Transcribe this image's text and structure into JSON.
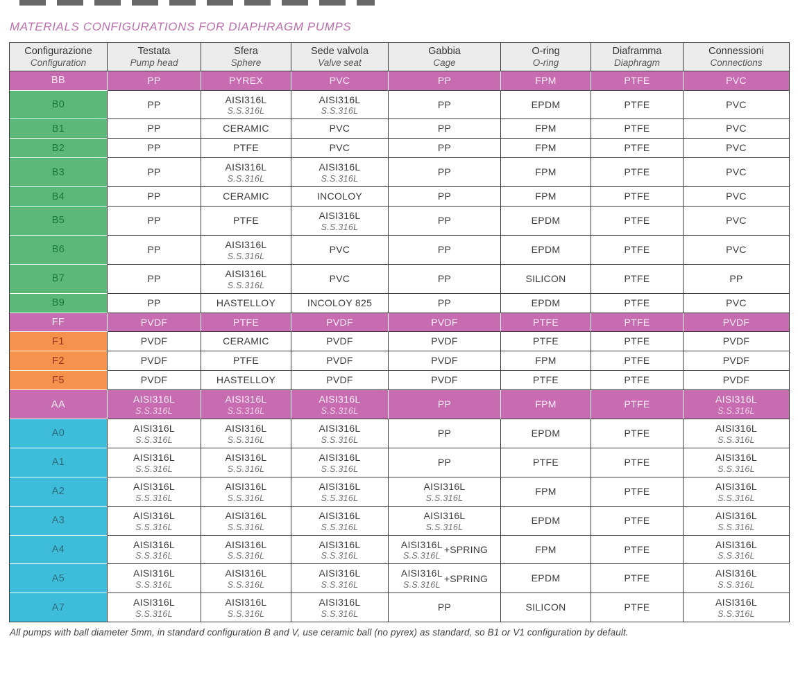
{
  "title": "MATERIALS CONFIGURATIONS FOR DIAPHRAGM PUMPS",
  "footnote": "All pumps with ball diameter 5mm, in standard configuration B and V, use ceramic ball (no pyrex) as standard, so B1 or V1 configuration by default.",
  "colors": {
    "magenta": "#c76cb0",
    "green": "#5cb878",
    "orange": "#f5924d",
    "cyan": "#3dbdd9",
    "title_pink": "#bc6fae"
  },
  "table": {
    "columns": [
      {
        "it": "Configurazione",
        "en": "Configuration"
      },
      {
        "it": "Testata",
        "en": "Pump head"
      },
      {
        "it": "Sfera",
        "en": "Sphere"
      },
      {
        "it": "Sede valvola",
        "en": "Valve seat"
      },
      {
        "it": "Gabbia",
        "en": "Cage"
      },
      {
        "it": "O-ring",
        "en": "O-ring"
      },
      {
        "it": "Diaframma",
        "en": "Diaphragm"
      },
      {
        "it": "Connessioni",
        "en": "Connections"
      }
    ],
    "rows": [
      {
        "code": "BB",
        "group": "magenta",
        "cells": [
          {
            "main": "PP"
          },
          {
            "main": "PYREX"
          },
          {
            "main": "PVC"
          },
          {
            "main": "PP"
          },
          {
            "main": "FPM"
          },
          {
            "main": "PTFE"
          },
          {
            "main": "PVC"
          }
        ]
      },
      {
        "code": "B0",
        "group": "green",
        "cells": [
          {
            "main": "PP"
          },
          {
            "main": "AISI316L",
            "sub": "S.S.316L"
          },
          {
            "main": "AISI316L",
            "sub": "S.S.316L"
          },
          {
            "main": "PP"
          },
          {
            "main": "EPDM"
          },
          {
            "main": "PTFE"
          },
          {
            "main": "PVC"
          }
        ]
      },
      {
        "code": "B1",
        "group": "green",
        "cells": [
          {
            "main": "PP"
          },
          {
            "main": "CERAMIC"
          },
          {
            "main": "PVC"
          },
          {
            "main": "PP"
          },
          {
            "main": "FPM"
          },
          {
            "main": "PTFE"
          },
          {
            "main": "PVC"
          }
        ]
      },
      {
        "code": "B2",
        "group": "green",
        "cells": [
          {
            "main": "PP"
          },
          {
            "main": "PTFE"
          },
          {
            "main": "PVC"
          },
          {
            "main": "PP"
          },
          {
            "main": "FPM"
          },
          {
            "main": "PTFE"
          },
          {
            "main": "PVC"
          }
        ]
      },
      {
        "code": "B3",
        "group": "green",
        "cells": [
          {
            "main": "PP"
          },
          {
            "main": "AISI316L",
            "sub": "S.S.316L"
          },
          {
            "main": "AISI316L",
            "sub": "S.S.316L"
          },
          {
            "main": "PP"
          },
          {
            "main": "FPM"
          },
          {
            "main": "PTFE"
          },
          {
            "main": "PVC"
          }
        ]
      },
      {
        "code": "B4",
        "group": "green",
        "cells": [
          {
            "main": "PP"
          },
          {
            "main": "CERAMIC"
          },
          {
            "main": "INCOLOY"
          },
          {
            "main": "PP"
          },
          {
            "main": "FPM"
          },
          {
            "main": "PTFE"
          },
          {
            "main": "PVC"
          }
        ]
      },
      {
        "code": "B5",
        "group": "green",
        "cells": [
          {
            "main": "PP"
          },
          {
            "main": "PTFE"
          },
          {
            "main": "AISI316L",
            "sub": "S.S.316L"
          },
          {
            "main": "PP"
          },
          {
            "main": "EPDM"
          },
          {
            "main": "PTFE"
          },
          {
            "main": "PVC"
          }
        ]
      },
      {
        "code": "B6",
        "group": "green",
        "cells": [
          {
            "main": "PP"
          },
          {
            "main": "AISI316L",
            "sub": "S.S.316L"
          },
          {
            "main": "PVC"
          },
          {
            "main": "PP"
          },
          {
            "main": "EPDM"
          },
          {
            "main": "PTFE"
          },
          {
            "main": "PVC"
          }
        ]
      },
      {
        "code": "B7",
        "group": "green",
        "cells": [
          {
            "main": "PP"
          },
          {
            "main": "AISI316L",
            "sub": "S.S.316L"
          },
          {
            "main": "PVC"
          },
          {
            "main": "PP"
          },
          {
            "main": "SILICON"
          },
          {
            "main": "PTFE"
          },
          {
            "main": "PP"
          }
        ]
      },
      {
        "code": "B9",
        "group": "green",
        "cells": [
          {
            "main": "PP"
          },
          {
            "main": "HASTELLOY"
          },
          {
            "main": "INCOLOY 825"
          },
          {
            "main": "PP"
          },
          {
            "main": "EPDM"
          },
          {
            "main": "PTFE"
          },
          {
            "main": "PVC"
          }
        ]
      },
      {
        "code": "FF",
        "group": "magenta",
        "cells": [
          {
            "main": "PVDF"
          },
          {
            "main": "PTFE"
          },
          {
            "main": "PVDF"
          },
          {
            "main": "PVDF"
          },
          {
            "main": "PTFE"
          },
          {
            "main": "PTFE"
          },
          {
            "main": "PVDF"
          }
        ]
      },
      {
        "code": "F1",
        "group": "orange",
        "cells": [
          {
            "main": "PVDF"
          },
          {
            "main": "CERAMIC"
          },
          {
            "main": "PVDF"
          },
          {
            "main": "PVDF"
          },
          {
            "main": "PTFE"
          },
          {
            "main": "PTFE"
          },
          {
            "main": "PVDF"
          }
        ]
      },
      {
        "code": "F2",
        "group": "orange",
        "cells": [
          {
            "main": "PVDF"
          },
          {
            "main": "PTFE"
          },
          {
            "main": "PVDF"
          },
          {
            "main": "PVDF"
          },
          {
            "main": "FPM"
          },
          {
            "main": "PTFE"
          },
          {
            "main": "PVDF"
          }
        ]
      },
      {
        "code": "F5",
        "group": "orange",
        "cells": [
          {
            "main": "PVDF"
          },
          {
            "main": "HASTELLOY"
          },
          {
            "main": "PVDF"
          },
          {
            "main": "PVDF"
          },
          {
            "main": "PTFE"
          },
          {
            "main": "PTFE"
          },
          {
            "main": "PVDF"
          }
        ]
      },
      {
        "code": "AA",
        "group": "magenta",
        "cells": [
          {
            "main": "AISI316L",
            "sub": "S.S.316L"
          },
          {
            "main": "AISI316L",
            "sub": "S.S.316L"
          },
          {
            "main": "AISI316L",
            "sub": "S.S.316L"
          },
          {
            "main": "PP"
          },
          {
            "main": "FPM"
          },
          {
            "main": "PTFE"
          },
          {
            "main": "AISI316L",
            "sub": "S.S.316L"
          }
        ]
      },
      {
        "code": "A0",
        "group": "cyan",
        "cells": [
          {
            "main": "AISI316L",
            "sub": "S.S.316L"
          },
          {
            "main": "AISI316L",
            "sub": "S.S.316L"
          },
          {
            "main": "AISI316L",
            "sub": "S.S.316L"
          },
          {
            "main": "PP"
          },
          {
            "main": "EPDM"
          },
          {
            "main": "PTFE"
          },
          {
            "main": "AISI316L",
            "sub": "S.S.316L"
          }
        ]
      },
      {
        "code": "A1",
        "group": "cyan",
        "cells": [
          {
            "main": "AISI316L",
            "sub": "S.S.316L"
          },
          {
            "main": "AISI316L",
            "sub": "S.S.316L"
          },
          {
            "main": "AISI316L",
            "sub": "S.S.316L"
          },
          {
            "main": "PP"
          },
          {
            "main": "PTFE"
          },
          {
            "main": "PTFE"
          },
          {
            "main": "AISI316L",
            "sub": "S.S.316L"
          }
        ]
      },
      {
        "code": "A2",
        "group": "cyan",
        "cells": [
          {
            "main": "AISI316L",
            "sub": "S.S.316L"
          },
          {
            "main": "AISI316L",
            "sub": "S.S.316L"
          },
          {
            "main": "AISI316L",
            "sub": "S.S.316L"
          },
          {
            "main": "AISI316L",
            "sub": "S.S.316L"
          },
          {
            "main": "FPM"
          },
          {
            "main": "PTFE"
          },
          {
            "main": "AISI316L",
            "sub": "S.S.316L"
          }
        ]
      },
      {
        "code": "A3",
        "group": "cyan",
        "cells": [
          {
            "main": "AISI316L",
            "sub": "S.S.316L"
          },
          {
            "main": "AISI316L",
            "sub": "S.S.316L"
          },
          {
            "main": "AISI316L",
            "sub": "S.S.316L"
          },
          {
            "main": "AISI316L",
            "sub": "S.S.316L"
          },
          {
            "main": "EPDM"
          },
          {
            "main": "PTFE"
          },
          {
            "main": "AISI316L",
            "sub": "S.S.316L"
          }
        ]
      },
      {
        "code": "A4",
        "group": "cyan",
        "cells": [
          {
            "main": "AISI316L",
            "sub": "S.S.316L"
          },
          {
            "main": "AISI316L",
            "sub": "S.S.316L"
          },
          {
            "main": "AISI316L",
            "sub": "S.S.316L"
          },
          {
            "main": "AISI316L",
            "sub": "S.S.316L",
            "suffix": "+SPRING"
          },
          {
            "main": "FPM"
          },
          {
            "main": "PTFE"
          },
          {
            "main": "AISI316L",
            "sub": "S.S.316L"
          }
        ]
      },
      {
        "code": "A5",
        "group": "cyan",
        "cells": [
          {
            "main": "AISI316L",
            "sub": "S.S.316L"
          },
          {
            "main": "AISI316L",
            "sub": "S.S.316L"
          },
          {
            "main": "AISI316L",
            "sub": "S.S.316L"
          },
          {
            "main": "AISI316L",
            "sub": "S.S.316L",
            "suffix": "+SPRING"
          },
          {
            "main": "EPDM"
          },
          {
            "main": "PTFE"
          },
          {
            "main": "AISI316L",
            "sub": "S.S.316L"
          }
        ]
      },
      {
        "code": "A7",
        "group": "cyan",
        "cells": [
          {
            "main": "AISI316L",
            "sub": "S.S.316L"
          },
          {
            "main": "AISI316L",
            "sub": "S.S.316L"
          },
          {
            "main": "AISI316L",
            "sub": "S.S.316L"
          },
          {
            "main": "PP"
          },
          {
            "main": "SILICON"
          },
          {
            "main": "PTFE"
          },
          {
            "main": "AISI316L",
            "sub": "S.S.316L"
          }
        ]
      }
    ]
  }
}
